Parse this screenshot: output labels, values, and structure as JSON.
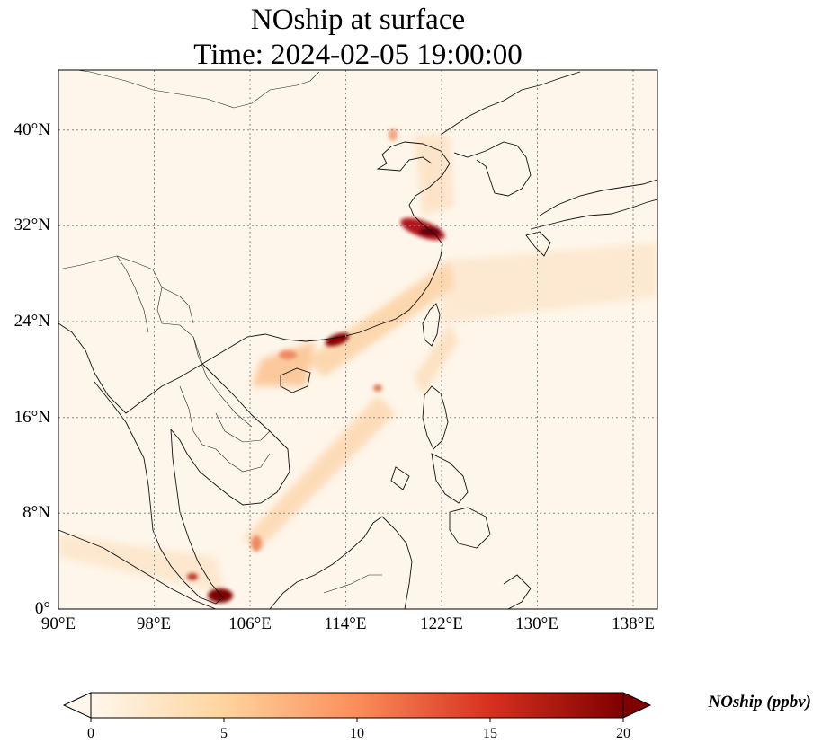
{
  "title_line1": "NOship at surface",
  "title_line2": "Time: 2024-02-05 19:00:00",
  "map": {
    "extent": {
      "lon_min": 90,
      "lon_max": 140,
      "lat_min": 0,
      "lat_max": 45
    },
    "lat_ticks": [
      "0°",
      "8°N",
      "16°N",
      "24°N",
      "32°N",
      "40°N"
    ],
    "lon_ticks": [
      "90°E",
      "98°E",
      "106°E",
      "114°E",
      "122°E",
      "130°E",
      "138°E"
    ],
    "gridlines": "dotted",
    "colormap": "OrRd",
    "background_color": "#fef6ea"
  },
  "colorbar": {
    "label": "NOship (ppbv)",
    "min": 0,
    "max": 20,
    "ticks": [
      "0",
      "5",
      "10",
      "15",
      "20"
    ],
    "extend": "both"
  }
}
